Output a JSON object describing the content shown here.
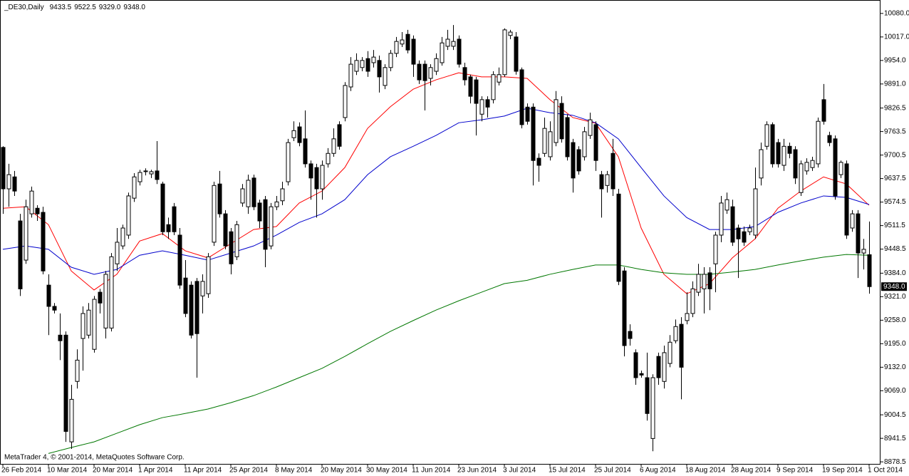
{
  "chart_data": {
    "type": "candlestick",
    "title": "_DE30,Daily",
    "info": [
      "9433.5",
      "9522.5",
      "9329.0",
      "9348.0"
    ],
    "footer": "MetaTrader 4, © 2001-2014, MetaQuotes Software Corp.",
    "up_color": "#ffffff",
    "down_color": "#000000",
    "categories": [
      "26 Feb 2014",
      null,
      null,
      null,
      null,
      null,
      null,
      null,
      "10 Mar 2014",
      null,
      null,
      null,
      null,
      null,
      null,
      null,
      "20 Mar 2014",
      null,
      null,
      null,
      null,
      null,
      null,
      null,
      "1 Apr 2014",
      null,
      null,
      null,
      null,
      null,
      null,
      null,
      "11 Apr 2014",
      null,
      null,
      null,
      null,
      null,
      null,
      null,
      "25 Apr 2014",
      null,
      null,
      null,
      null,
      null,
      null,
      null,
      "8 May 2014",
      null,
      null,
      null,
      null,
      null,
      null,
      null,
      "20 May 2014",
      null,
      null,
      null,
      null,
      null,
      null,
      null,
      "30 May 2014",
      null,
      null,
      null,
      null,
      null,
      null,
      null,
      "11 Jun 2014",
      null,
      null,
      null,
      null,
      null,
      null,
      null,
      "23 Jun 2014",
      null,
      null,
      null,
      null,
      null,
      null,
      null,
      "3 Jul 2014",
      null,
      null,
      null,
      null,
      null,
      null,
      null,
      "15 Jul 2014",
      null,
      null,
      null,
      null,
      null,
      null,
      null,
      "25 Jul 2014",
      null,
      null,
      null,
      null,
      null,
      null,
      null,
      "6 Aug 2014",
      null,
      null,
      null,
      null,
      null,
      null,
      null,
      "18 Aug 2014",
      null,
      null,
      null,
      null,
      null,
      null,
      null,
      "28 Aug 2014",
      null,
      null,
      null,
      null,
      null,
      null,
      null,
      "9 Sep 2014",
      null,
      null,
      null,
      null,
      null,
      null,
      null,
      "19 Sep 2014",
      null,
      null,
      null,
      null,
      null,
      null,
      null,
      "1 Oct 2014"
    ],
    "open": [
      9721,
      9610,
      9642,
      9524,
      9419,
      9543,
      9558,
      9547,
      9352,
      9295,
      9218,
      9218,
      8932,
      9094,
      9209,
      9218,
      9180,
      9333,
      9237,
      9237,
      9409,
      9457,
      9486,
      9585,
      9629,
      9656,
      9650,
      9658,
      9623,
      9514,
      9562,
      9486,
      9371,
      9352,
      9362,
      9323,
      9329,
      9467,
      9623,
      9543,
      9495,
      9428,
      9572,
      9562,
      9639,
      9572,
      9581,
      9457,
      9562,
      9578,
      9629,
      9747,
      9776,
      9744,
      9677,
      9667,
      9610,
      9677,
      9705,
      9782,
      9801,
      9883,
      9925,
      9935,
      9959,
      9948,
      9954,
      9887,
      9935,
      9973,
      9998,
      10024,
      10011,
      9944,
      9944,
      9906,
      9925,
      9948,
      9992,
      9992,
      10011,
      9935,
      9910,
      9902,
      9810,
      9849,
      9849,
      9896,
      9916,
      10021,
      10017,
      9929,
      9829,
      9829,
      9692,
      9705,
      9696,
      9734,
      9839,
      9801,
      9734,
      9715,
      9696,
      9753,
      9782,
      9648,
      9619,
      9705,
      9596,
      9390,
      9228,
      9171,
      9115,
      9104,
      8941,
      9161,
      9094,
      9142,
      9203,
      9247,
      9257,
      9276,
      9333,
      9342,
      9385,
      9409,
      9486,
      9553,
      9562,
      9505,
      9495,
      9495,
      9486,
      9639,
      9724,
      9782,
      9734,
      9673,
      9724,
      9715,
      9600,
      9658,
      9667,
      9677,
      9849,
      9753,
      9744,
      9648,
      9677,
      9505,
      9543,
      9438,
      9433.5
    ],
    "high": [
      9724,
      9677,
      9658,
      9543,
      9581,
      9616,
      9566,
      9562,
      9381,
      9304,
      9276,
      9228,
      9085,
      9180,
      9295,
      9304,
      9323,
      9342,
      9390,
      9438,
      9505,
      9514,
      9600,
      9652,
      9661,
      9665,
      9661,
      9738,
      9629,
      9533,
      9572,
      9505,
      9419,
      9362,
      9371,
      9381,
      9438,
      9629,
      9658,
      9553,
      9505,
      9524,
      9623,
      9648,
      9648,
      9581,
      9591,
      9572,
      9591,
      9629,
      9744,
      9791,
      9788,
      9820,
      9686,
      9677,
      9686,
      9719,
      9772,
      9791,
      9896,
      9963,
      9973,
      9963,
      9979,
      9982,
      9967,
      9944,
      9982,
      10017,
      10030,
      10036,
      10021,
      9954,
      9954,
      9944,
      9973,
      10017,
      10036,
      10049,
      10021,
      9948,
      9916,
      9910,
      9858,
      9858,
      9925,
      9935,
      10040,
      10036,
      10030,
      9935,
      9839,
      9839,
      9705,
      9801,
      9791,
      9872,
      9858,
      9810,
      9744,
      9724,
      9776,
      9814,
      9791,
      9658,
      9658,
      9744,
      9610,
      9400,
      9247,
      9180,
      9123,
      9171,
      9113,
      9171,
      9190,
      9218,
      9260,
      9266,
      9333,
      9362,
      9409,
      9400,
      9400,
      9495,
      9591,
      9600,
      9581,
      9514,
      9509,
      9514,
      9667,
      9734,
      9791,
      9788,
      9744,
      9744,
      9734,
      9724,
      9686,
      9692,
      9696,
      9801,
      9891,
      9763,
      9753,
      9686,
      9686,
      9553,
      9553,
      9476,
      9522.5
    ],
    "low": [
      9543,
      9562,
      9591,
      9323,
      9409,
      9533,
      9524,
      9381,
      9218,
      9276,
      9151,
      8932,
      8913,
      9075,
      9123,
      9209,
      9171,
      9276,
      9209,
      9228,
      9390,
      9448,
      9476,
      9575,
      9619,
      9646,
      9639,
      9623,
      9486,
      9476,
      9486,
      9342,
      9266,
      9209,
      9104,
      9276,
      9318,
      9457,
      9533,
      9448,
      9381,
      9419,
      9562,
      9543,
      9553,
      9505,
      9400,
      9448,
      9553,
      9566,
      9619,
      9738,
      9724,
      9667,
      9581,
      9533,
      9581,
      9667,
      9696,
      9715,
      9791,
      9872,
      9915,
      9925,
      9910,
      9935,
      9868,
      9877,
      9925,
      9963,
      9990,
      9973,
      9910,
      9891,
      9820,
      9887,
      9915,
      9940,
      9982,
      9982,
      9935,
      9887,
      9839,
      9753,
      9791,
      9801,
      9839,
      9887,
      9910,
      10011,
      9916,
      9772,
      9782,
      9619,
      9629,
      9696,
      9686,
      9724,
      9734,
      9686,
      9600,
      9648,
      9686,
      9744,
      9658,
      9533,
      9600,
      9591,
      9352,
      9161,
      9190,
      9085,
      9104,
      8989,
      8907,
      9085,
      9075,
      9132,
      9196,
      9046,
      9247,
      9266,
      9323,
      9276,
      9285,
      9333,
      9467,
      9543,
      9457,
      9371,
      9457,
      9486,
      9476,
      9619,
      9715,
      9667,
      9667,
      9658,
      9692,
      9623,
      9591,
      9648,
      9658,
      9667,
      9782,
      9724,
      9581,
      9639,
      9476,
      9495,
      9371,
      9394,
      9329
    ],
    "close": [
      9610,
      9648,
      9604,
      9342,
      9562,
      9604,
      9543,
      9390,
      9295,
      9285,
      9203,
      8960,
      9046,
      9151,
      9276,
      9285,
      9314,
      9304,
      9381,
      9428,
      9467,
      9505,
      9591,
      9642,
      9654,
      9658,
      9656,
      9635,
      9495,
      9495,
      9495,
      9352,
      9276,
      9218,
      9222,
      9362,
      9428,
      9619,
      9543,
      9457,
      9409,
      9514,
      9610,
      9633,
      9562,
      9524,
      9448,
      9562,
      9575,
      9610,
      9734,
      9766,
      9734,
      9677,
      9639,
      9610,
      9673,
      9705,
      9744,
      9724,
      9887,
      9944,
      9954,
      9954,
      9925,
      9963,
      9910,
      9935,
      9973,
      10005,
      10009,
      9982,
      9944,
      9902,
      9900,
      9935,
      9959,
      10001,
      10011,
      10005,
      9944,
      9902,
      9858,
      9839,
      9849,
      9829,
      9916,
      9916,
      10036,
      10030,
      9925,
      9782,
      9791,
      9686,
      9673,
      9772,
      9763,
      9849,
      9744,
      9696,
      9639,
      9658,
      9763,
      9795,
      9686,
      9610,
      9648,
      9610,
      9362,
      9190,
      9209,
      9104,
      9111,
      9008,
      9104,
      9104,
      9171,
      9199,
      9241,
      9132,
      9276,
      9342,
      9381,
      9381,
      9342,
      9486,
      9572,
      9581,
      9467,
      9476,
      9467,
      9505,
      9610,
      9715,
      9782,
      9677,
      9677,
      9724,
      9705,
      9639,
      9677,
      9681,
      9686,
      9791,
      9791,
      9734,
      9591,
      9681,
      9486,
      9543,
      9438,
      9448,
      9348
    ],
    "overlays": [
      {
        "color": "#ff0000",
        "x": [
          0,
          4,
          8,
          12,
          16,
          20,
          24,
          28,
          32,
          36,
          40,
          44,
          48,
          52,
          56,
          60,
          64,
          68,
          72,
          76,
          80,
          84,
          88,
          92,
          96,
          100,
          104,
          108,
          112,
          116,
          120,
          124,
          128,
          132,
          136,
          140,
          144,
          148,
          152
        ],
        "values": [
          9558,
          9562,
          9514,
          9390,
          9339,
          9381,
          9470,
          9490,
          9444,
          9425,
          9463,
          9501,
          9509,
          9572,
          9604,
          9667,
          9772,
          9830,
          9877,
          9902,
          9921,
          9910,
          9910,
          9906,
          9849,
          9801,
          9786,
          9696,
          9505,
          9381,
          9329,
          9356,
          9425,
          9476,
          9558,
          9604,
          9642,
          9623,
          9566
        ]
      },
      {
        "color": "#0000cc",
        "x": [
          0,
          4,
          8,
          12,
          16,
          20,
          24,
          28,
          32,
          36,
          40,
          44,
          48,
          52,
          56,
          60,
          64,
          68,
          72,
          76,
          80,
          84,
          88,
          92,
          96,
          100,
          104,
          108,
          112,
          116,
          120,
          124,
          128,
          132,
          136,
          140,
          144,
          148,
          152
        ],
        "values": [
          9448,
          9457,
          9448,
          9400,
          9381,
          9394,
          9432,
          9444,
          9432,
          9419,
          9438,
          9457,
          9486,
          9520,
          9543,
          9581,
          9648,
          9696,
          9724,
          9753,
          9787,
          9795,
          9805,
          9826,
          9814,
          9807,
          9787,
          9744,
          9667,
          9591,
          9533,
          9501,
          9501,
          9509,
          9547,
          9572,
          9591,
          9587,
          9568
        ]
      },
      {
        "color": "#007700",
        "x": [
          0,
          4,
          8,
          12,
          16,
          20,
          24,
          28,
          32,
          36,
          40,
          44,
          48,
          52,
          56,
          60,
          64,
          68,
          72,
          76,
          80,
          84,
          88,
          92,
          96,
          100,
          104,
          108,
          112,
          116,
          120,
          124,
          128,
          132,
          136,
          140,
          144,
          148,
          152
        ],
        "values": [
          null,
          null,
          8901,
          8917,
          8932,
          8955,
          8978,
          8997,
          9008,
          9020,
          9037,
          9056,
          9079,
          9104,
          9129,
          9161,
          9195,
          9228,
          9257,
          9285,
          9310,
          9333,
          9356,
          9365,
          9381,
          9394,
          9406,
          9406,
          9394,
          9385,
          9381,
          9381,
          9387,
          9394,
          9406,
          9417,
          9427,
          9434,
          9432
        ]
      }
    ],
    "last_price": {
      "value": 9348.0,
      "label": "9348.0"
    },
    "ylim": [
      8873,
      10116
    ],
    "yticks": [
      {
        "value": 10080.0,
        "label": "10080.0"
      },
      {
        "value": 10017.0,
        "label": "10017.0"
      },
      {
        "value": 9954.0,
        "label": "9954.0"
      },
      {
        "value": 9891.0,
        "label": "9891.0"
      },
      {
        "value": 9826.5,
        "label": "9826.5"
      },
      {
        "value": 9763.5,
        "label": "9763.5"
      },
      {
        "value": 9700.5,
        "label": "9700.5"
      },
      {
        "value": 9637.5,
        "label": "9637.5"
      },
      {
        "value": 9574.5,
        "label": "9574.5"
      },
      {
        "value": 9511.5,
        "label": "9511.5"
      },
      {
        "value": 9448.5,
        "label": "9448.5"
      },
      {
        "value": 9384.0,
        "label": "9384.0"
      },
      {
        "value": 9321.0,
        "label": "9321.0"
      },
      {
        "value": 9258.0,
        "label": "9258.0"
      },
      {
        "value": 9195.0,
        "label": "9195.0"
      },
      {
        "value": 9132.0,
        "label": "9132.0"
      },
      {
        "value": 9069.0,
        "label": "9069.0"
      },
      {
        "value": 9004.5,
        "label": "9004.5"
      },
      {
        "value": 8941.5,
        "label": "8941.5"
      },
      {
        "value": 8878.5,
        "label": "8878.5"
      }
    ]
  }
}
